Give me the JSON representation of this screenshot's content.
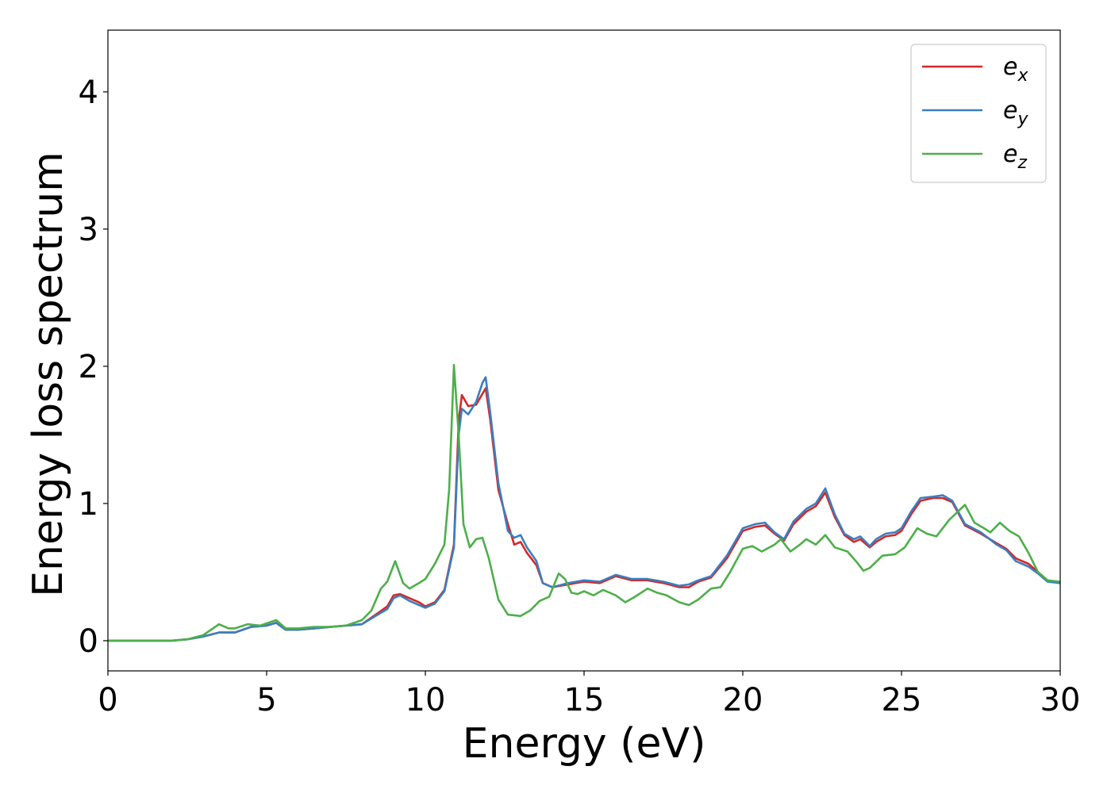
{
  "chart_data": {
    "type": "line",
    "xlabel": "Energy (eV)",
    "ylabel": "Energy loss spectrum",
    "xlim": [
      0,
      30
    ],
    "ylim": [
      -0.22,
      4.45
    ],
    "xticks": [
      "0",
      "5",
      "10",
      "15",
      "20",
      "25",
      "30"
    ],
    "yticks": [
      "0",
      "1",
      "2",
      "3",
      "4"
    ],
    "grid": false,
    "legend_position": "top-right",
    "series": [
      {
        "name": "e_x",
        "legend_base": "e",
        "legend_sub": "x",
        "color": "#d62728",
        "points": [
          [
            0,
            0
          ],
          [
            1,
            0
          ],
          [
            2,
            0
          ],
          [
            2.5,
            0.01
          ],
          [
            3,
            0.03
          ],
          [
            3.5,
            0.06
          ],
          [
            4,
            0.06
          ],
          [
            4.5,
            0.1
          ],
          [
            5,
            0.11
          ],
          [
            5.3,
            0.13
          ],
          [
            5.6,
            0.08
          ],
          [
            6,
            0.08
          ],
          [
            6.5,
            0.09
          ],
          [
            7,
            0.1
          ],
          [
            7.5,
            0.11
          ],
          [
            8,
            0.12
          ],
          [
            8.5,
            0.2
          ],
          [
            8.8,
            0.25
          ],
          [
            9,
            0.33
          ],
          [
            9.2,
            0.34
          ],
          [
            9.5,
            0.31
          ],
          [
            9.8,
            0.28
          ],
          [
            10,
            0.25
          ],
          [
            10.3,
            0.28
          ],
          [
            10.6,
            0.37
          ],
          [
            10.9,
            0.7
          ],
          [
            11.05,
            1.6
          ],
          [
            11.15,
            1.79
          ],
          [
            11.35,
            1.71
          ],
          [
            11.6,
            1.72
          ],
          [
            11.8,
            1.8
          ],
          [
            11.9,
            1.84
          ],
          [
            12.05,
            1.6
          ],
          [
            12.3,
            1.1
          ],
          [
            12.6,
            0.85
          ],
          [
            12.8,
            0.7
          ],
          [
            13,
            0.72
          ],
          [
            13.2,
            0.64
          ],
          [
            13.5,
            0.55
          ],
          [
            13.7,
            0.42
          ],
          [
            14,
            0.39
          ],
          [
            14.5,
            0.41
          ],
          [
            15,
            0.43
          ],
          [
            15.5,
            0.42
          ],
          [
            16,
            0.47
          ],
          [
            16.5,
            0.44
          ],
          [
            17,
            0.44
          ],
          [
            17.5,
            0.42
          ],
          [
            18,
            0.39
          ],
          [
            18.3,
            0.39
          ],
          [
            18.6,
            0.43
          ],
          [
            19,
            0.46
          ],
          [
            19.5,
            0.6
          ],
          [
            20,
            0.8
          ],
          [
            20.4,
            0.83
          ],
          [
            20.7,
            0.84
          ],
          [
            21,
            0.78
          ],
          [
            21.3,
            0.73
          ],
          [
            21.6,
            0.85
          ],
          [
            22,
            0.94
          ],
          [
            22.3,
            0.98
          ],
          [
            22.6,
            1.08
          ],
          [
            22.9,
            0.9
          ],
          [
            23.2,
            0.77
          ],
          [
            23.5,
            0.72
          ],
          [
            23.7,
            0.74
          ],
          [
            24,
            0.68
          ],
          [
            24.2,
            0.72
          ],
          [
            24.5,
            0.76
          ],
          [
            24.8,
            0.77
          ],
          [
            25,
            0.8
          ],
          [
            25.3,
            0.92
          ],
          [
            25.6,
            1.02
          ],
          [
            26,
            1.04
          ],
          [
            26.3,
            1.04
          ],
          [
            26.6,
            1.01
          ],
          [
            27,
            0.84
          ],
          [
            27.5,
            0.78
          ],
          [
            28,
            0.71
          ],
          [
            28.3,
            0.67
          ],
          [
            28.6,
            0.6
          ],
          [
            29,
            0.56
          ],
          [
            29.3,
            0.5
          ],
          [
            29.6,
            0.44
          ],
          [
            30,
            0.42
          ]
        ]
      },
      {
        "name": "e_y",
        "legend_base": "e",
        "legend_sub": "y",
        "color": "#3a7fbf",
        "points": [
          [
            0,
            0
          ],
          [
            1,
            0
          ],
          [
            2,
            0
          ],
          [
            2.5,
            0.01
          ],
          [
            3,
            0.03
          ],
          [
            3.5,
            0.06
          ],
          [
            4,
            0.06
          ],
          [
            4.5,
            0.1
          ],
          [
            5,
            0.11
          ],
          [
            5.3,
            0.13
          ],
          [
            5.6,
            0.08
          ],
          [
            6,
            0.08
          ],
          [
            6.5,
            0.09
          ],
          [
            7,
            0.1
          ],
          [
            7.5,
            0.11
          ],
          [
            8,
            0.12
          ],
          [
            8.5,
            0.19
          ],
          [
            8.8,
            0.23
          ],
          [
            9,
            0.31
          ],
          [
            9.2,
            0.33
          ],
          [
            9.5,
            0.29
          ],
          [
            9.8,
            0.26
          ],
          [
            10,
            0.24
          ],
          [
            10.3,
            0.27
          ],
          [
            10.6,
            0.36
          ],
          [
            10.9,
            0.68
          ],
          [
            11.05,
            1.5
          ],
          [
            11.15,
            1.69
          ],
          [
            11.35,
            1.65
          ],
          [
            11.6,
            1.74
          ],
          [
            11.8,
            1.88
          ],
          [
            11.9,
            1.92
          ],
          [
            12.05,
            1.65
          ],
          [
            12.3,
            1.15
          ],
          [
            12.6,
            0.8
          ],
          [
            12.8,
            0.75
          ],
          [
            13,
            0.77
          ],
          [
            13.2,
            0.68
          ],
          [
            13.5,
            0.58
          ],
          [
            13.7,
            0.42
          ],
          [
            14,
            0.39
          ],
          [
            14.5,
            0.42
          ],
          [
            15,
            0.44
          ],
          [
            15.5,
            0.43
          ],
          [
            16,
            0.48
          ],
          [
            16.5,
            0.45
          ],
          [
            17,
            0.45
          ],
          [
            17.5,
            0.43
          ],
          [
            18,
            0.4
          ],
          [
            18.3,
            0.41
          ],
          [
            18.6,
            0.44
          ],
          [
            19,
            0.47
          ],
          [
            19.5,
            0.62
          ],
          [
            20,
            0.82
          ],
          [
            20.4,
            0.85
          ],
          [
            20.7,
            0.86
          ],
          [
            21,
            0.79
          ],
          [
            21.3,
            0.74
          ],
          [
            21.6,
            0.87
          ],
          [
            22,
            0.96
          ],
          [
            22.3,
            1.0
          ],
          [
            22.6,
            1.11
          ],
          [
            22.9,
            0.92
          ],
          [
            23.2,
            0.78
          ],
          [
            23.5,
            0.74
          ],
          [
            23.7,
            0.76
          ],
          [
            24,
            0.69
          ],
          [
            24.2,
            0.74
          ],
          [
            24.5,
            0.78
          ],
          [
            24.8,
            0.79
          ],
          [
            25,
            0.82
          ],
          [
            25.3,
            0.94
          ],
          [
            25.6,
            1.04
          ],
          [
            26,
            1.05
          ],
          [
            26.3,
            1.06
          ],
          [
            26.6,
            1.02
          ],
          [
            27,
            0.85
          ],
          [
            27.5,
            0.79
          ],
          [
            28,
            0.7
          ],
          [
            28.3,
            0.66
          ],
          [
            28.6,
            0.58
          ],
          [
            29,
            0.54
          ],
          [
            29.3,
            0.49
          ],
          [
            29.6,
            0.43
          ],
          [
            30,
            0.42
          ]
        ]
      },
      {
        "name": "e_z",
        "legend_base": "e",
        "legend_sub": "z",
        "color": "#4daf4a",
        "points": [
          [
            0,
            0
          ],
          [
            1,
            0
          ],
          [
            2,
            0
          ],
          [
            2.5,
            0.01
          ],
          [
            3,
            0.04
          ],
          [
            3.5,
            0.12
          ],
          [
            3.8,
            0.09
          ],
          [
            4,
            0.09
          ],
          [
            4.4,
            0.12
          ],
          [
            4.8,
            0.11
          ],
          [
            5.3,
            0.15
          ],
          [
            5.6,
            0.09
          ],
          [
            6,
            0.09
          ],
          [
            6.5,
            0.1
          ],
          [
            7,
            0.1
          ],
          [
            7.5,
            0.11
          ],
          [
            8,
            0.15
          ],
          [
            8.3,
            0.22
          ],
          [
            8.6,
            0.38
          ],
          [
            8.8,
            0.43
          ],
          [
            9.05,
            0.58
          ],
          [
            9.3,
            0.42
          ],
          [
            9.5,
            0.38
          ],
          [
            9.8,
            0.42
          ],
          [
            10,
            0.45
          ],
          [
            10.3,
            0.56
          ],
          [
            10.6,
            0.7
          ],
          [
            10.75,
            1.1
          ],
          [
            10.9,
            2.01
          ],
          [
            11.05,
            1.5
          ],
          [
            11.2,
            0.85
          ],
          [
            11.4,
            0.68
          ],
          [
            11.6,
            0.74
          ],
          [
            11.8,
            0.75
          ],
          [
            12,
            0.6
          ],
          [
            12.3,
            0.3
          ],
          [
            12.6,
            0.19
          ],
          [
            13,
            0.18
          ],
          [
            13.3,
            0.22
          ],
          [
            13.6,
            0.29
          ],
          [
            13.9,
            0.32
          ],
          [
            14.2,
            0.49
          ],
          [
            14.4,
            0.45
          ],
          [
            14.6,
            0.35
          ],
          [
            14.8,
            0.34
          ],
          [
            15,
            0.36
          ],
          [
            15.3,
            0.33
          ],
          [
            15.6,
            0.37
          ],
          [
            16,
            0.33
          ],
          [
            16.3,
            0.28
          ],
          [
            16.6,
            0.32
          ],
          [
            17,
            0.38
          ],
          [
            17.3,
            0.35
          ],
          [
            17.6,
            0.33
          ],
          [
            18,
            0.28
          ],
          [
            18.3,
            0.26
          ],
          [
            18.6,
            0.3
          ],
          [
            19,
            0.38
          ],
          [
            19.3,
            0.39
          ],
          [
            19.6,
            0.5
          ],
          [
            20,
            0.67
          ],
          [
            20.3,
            0.69
          ],
          [
            20.6,
            0.65
          ],
          [
            21,
            0.7
          ],
          [
            21.2,
            0.74
          ],
          [
            21.5,
            0.65
          ],
          [
            21.8,
            0.7
          ],
          [
            22,
            0.74
          ],
          [
            22.3,
            0.7
          ],
          [
            22.6,
            0.77
          ],
          [
            22.9,
            0.68
          ],
          [
            23.3,
            0.65
          ],
          [
            23.6,
            0.57
          ],
          [
            23.8,
            0.51
          ],
          [
            24,
            0.53
          ],
          [
            24.4,
            0.62
          ],
          [
            24.8,
            0.63
          ],
          [
            25.1,
            0.68
          ],
          [
            25.5,
            0.82
          ],
          [
            25.8,
            0.78
          ],
          [
            26.1,
            0.76
          ],
          [
            26.5,
            0.88
          ],
          [
            27,
            0.99
          ],
          [
            27.3,
            0.86
          ],
          [
            27.6,
            0.82
          ],
          [
            27.8,
            0.79
          ],
          [
            28.1,
            0.86
          ],
          [
            28.4,
            0.8
          ],
          [
            28.7,
            0.76
          ],
          [
            29,
            0.64
          ],
          [
            29.3,
            0.5
          ],
          [
            29.6,
            0.44
          ],
          [
            30,
            0.43
          ]
        ]
      }
    ]
  }
}
